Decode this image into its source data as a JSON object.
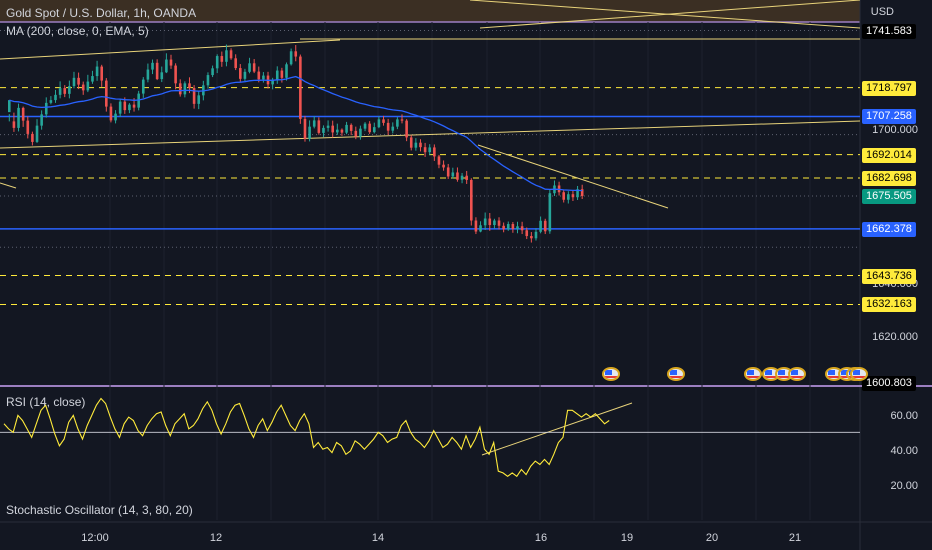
{
  "header": {
    "title": "Gold Spot / U.S. Dollar, 1h, OANDA",
    "ma_legend": "MA (200, close, 0, EMA, 5)",
    "currency": "USD"
  },
  "price_axis": {
    "ticks": [
      "1700.000",
      "1640.000",
      "1620.000"
    ],
    "tags": [
      {
        "value": "1741.583",
        "color": "#ffffff",
        "bg": "#000000"
      },
      {
        "value": "1718.797",
        "color": "#000000",
        "bg": "#ffeb3b"
      },
      {
        "value": "1707.258",
        "color": "#ffffff",
        "bg": "#2962ff"
      },
      {
        "value": "1692.014",
        "color": "#000000",
        "bg": "#ffeb3b"
      },
      {
        "value": "1682.698",
        "color": "#000000",
        "bg": "#ffeb3b"
      },
      {
        "value": "1675.505",
        "color": "#ffffff",
        "bg": "#089981"
      },
      {
        "value": "1662.378",
        "color": "#ffffff",
        "bg": "#2962ff"
      },
      {
        "value": "1643.736",
        "color": "#000000",
        "bg": "#ffeb3b"
      },
      {
        "value": "1632.163",
        "color": "#000000",
        "bg": "#ffeb3b"
      },
      {
        "value": "1600.803",
        "color": "#ffffff",
        "bg": "#000000"
      }
    ]
  },
  "rsi": {
    "legend": "RSI (14, close)",
    "ticks": [
      "60.00",
      "40.00",
      "20.00"
    ]
  },
  "stoch": {
    "legend": "Stochastic Oscillator (14, 3, 80, 20)"
  },
  "time_axis": {
    "labels": [
      "12:00",
      "12",
      "14",
      "16",
      "19",
      "20",
      "21"
    ]
  },
  "events": {
    "icon": "us-flag-icon",
    "count": 10
  },
  "colors": {
    "background": "#131722",
    "up": "#26a69a",
    "down": "#ef5350",
    "ma": "#2962ff",
    "support_blue": "#2962ff",
    "yellow": "#ffeb3b",
    "trendline": "#e8d37a",
    "rsi_line": "#ffeb3b",
    "pane_separator": "#9c7fc1"
  },
  "chart_data": {
    "type": "candlestick",
    "title": "Gold Spot / U.S. Dollar, 1h, OANDA",
    "y_unit": "USD",
    "price_ylim": [
      1600,
      1745
    ],
    "horizontal_levels_dashed": [
      1718.797,
      1692.014,
      1682.698,
      1643.736,
      1632.163
    ],
    "horizontal_levels_solid": [
      1707.258,
      1662.378
    ],
    "last_price": 1675.505,
    "dotted_levels": [
      1741.583,
      1700.0,
      1675.505,
      1655.0
    ],
    "rsi_ylim": [
      10,
      75
    ],
    "rsi_level": 50,
    "rsi_values": [
      55,
      52,
      50,
      60,
      57,
      52,
      47,
      55,
      63,
      66,
      58,
      49,
      42,
      46,
      56,
      60,
      52,
      46,
      54,
      60,
      66,
      70,
      67,
      59,
      52,
      47,
      55,
      59,
      57,
      51,
      48,
      54,
      58,
      61,
      62,
      54,
      48,
      55,
      58,
      61,
      52,
      54,
      58,
      64,
      68,
      63,
      55,
      49,
      55,
      62,
      66,
      67,
      60,
      52,
      47,
      54,
      58,
      51,
      56,
      62,
      66,
      60,
      54,
      51,
      57,
      61,
      55,
      41,
      44,
      40,
      41,
      38,
      44,
      42,
      37,
      39,
      45,
      43,
      40,
      43,
      46,
      50,
      48,
      44,
      46,
      47,
      54,
      57,
      50,
      46,
      44,
      41,
      45,
      51,
      46,
      41,
      43,
      47,
      44,
      40,
      48,
      41,
      46,
      53,
      40,
      37,
      44,
      27,
      26,
      24,
      26,
      24,
      28,
      25,
      30,
      33,
      31,
      34,
      31,
      37,
      44,
      47,
      63,
      63,
      61,
      59,
      61,
      59,
      61,
      58,
      55,
      57
    ],
    "candles": [
      [
        1709.0,
        1713.8,
        1708.2,
        1705.3
      ],
      [
        1705.3,
        1702.7,
        1708.8,
        1701.1
      ],
      [
        1702.7,
        1710.7,
        1712.4,
        1701.3
      ],
      [
        1710.7,
        1705.6,
        1711.2,
        1703.1
      ],
      [
        1705.6,
        1700.3,
        1707.3,
        1698.5
      ],
      [
        1700.3,
        1697.1,
        1701.2,
        1695.7
      ],
      [
        1697.1,
        1703.6,
        1706.2,
        1696.7
      ],
      [
        1703.6,
        1708.1,
        1709.7,
        1702.0
      ],
      [
        1708.1,
        1712.7,
        1714.9,
        1706.8
      ],
      [
        1712.7,
        1713.8,
        1715.4,
        1712.1
      ],
      [
        1713.8,
        1715.9,
        1717.9,
        1712.7
      ],
      [
        1715.9,
        1718.6,
        1721.3,
        1714.5
      ],
      [
        1718.6,
        1716.3,
        1719.8,
        1715.0
      ],
      [
        1716.3,
        1719.4,
        1721.6,
        1714.5
      ],
      [
        1719.4,
        1722.7,
        1725.1,
        1718.5
      ],
      [
        1722.7,
        1720.0,
        1724.8,
        1718.2
      ],
      [
        1720.0,
        1717.7,
        1721.2,
        1715.9
      ],
      [
        1717.7,
        1721.2,
        1723.9,
        1717.0
      ],
      [
        1721.2,
        1723.4,
        1725.5,
        1720.3
      ],
      [
        1723.4,
        1727.2,
        1729.5,
        1721.5
      ],
      [
        1727.2,
        1721.6,
        1727.9,
        1719.1
      ],
      [
        1721.6,
        1711.2,
        1722.6,
        1709.2
      ],
      [
        1711.2,
        1705.7,
        1712.5,
        1704.9
      ],
      [
        1705.7,
        1708.4,
        1709.8,
        1704.5
      ],
      [
        1708.4,
        1713.2,
        1714.2,
        1707.1
      ],
      [
        1713.2,
        1709.8,
        1714.9,
        1708.3
      ],
      [
        1709.8,
        1712.0,
        1712.6,
        1708.6
      ],
      [
        1712.0,
        1710.8,
        1714.6,
        1709.2
      ],
      [
        1710.8,
        1716.4,
        1717.5,
        1709.7
      ],
      [
        1716.4,
        1722.0,
        1723.0,
        1714.7
      ],
      [
        1722.0,
        1726.0,
        1728.4,
        1720.9
      ],
      [
        1726.0,
        1728.7,
        1730.0,
        1724.2
      ],
      [
        1728.7,
        1722.2,
        1730.1,
        1721.8
      ],
      [
        1722.2,
        1724.9,
        1727.2,
        1721.0
      ],
      [
        1724.9,
        1730.0,
        1732.5,
        1724.6
      ],
      [
        1730.0,
        1727.6,
        1731.9,
        1726.3
      ],
      [
        1727.6,
        1720.5,
        1728.5,
        1718.1
      ],
      [
        1720.5,
        1716.1,
        1722.1,
        1715.2
      ],
      [
        1716.1,
        1720.5,
        1721.3,
        1714.9
      ],
      [
        1720.5,
        1718.6,
        1722.9,
        1716.6
      ],
      [
        1718.6,
        1712.3,
        1719.8,
        1710.4
      ],
      [
        1712.3,
        1715.7,
        1717.4,
        1710.2
      ],
      [
        1715.7,
        1719.7,
        1721.5,
        1713.7
      ],
      [
        1719.7,
        1723.8,
        1724.9,
        1718.4
      ],
      [
        1723.8,
        1726.5,
        1727.6,
        1723.0
      ],
      [
        1726.5,
        1731.4,
        1732.1,
        1724.6
      ],
      [
        1731.4,
        1729.1,
        1733.2,
        1727.1
      ],
      [
        1729.1,
        1733.7,
        1736.0,
        1727.3
      ],
      [
        1733.7,
        1730.5,
        1734.5,
        1729.9
      ],
      [
        1730.5,
        1726.6,
        1732.1,
        1725.8
      ],
      [
        1726.6,
        1722.3,
        1728.2,
        1720.8
      ],
      [
        1722.3,
        1725.1,
        1726.3,
        1721.4
      ],
      [
        1725.1,
        1728.5,
        1730.7,
        1724.5
      ],
      [
        1728.5,
        1725.2,
        1730.2,
        1724.6
      ],
      [
        1725.2,
        1722.1,
        1727.2,
        1720.9
      ],
      [
        1722.1,
        1723.6,
        1725.0,
        1720.8
      ],
      [
        1723.6,
        1720.1,
        1725.1,
        1718.4
      ],
      [
        1720.1,
        1721.9,
        1722.7,
        1718.1
      ],
      [
        1721.9,
        1725.6,
        1727.3,
        1720.3
      ],
      [
        1725.6,
        1722.7,
        1726.7,
        1720.8
      ],
      [
        1722.7,
        1728.1,
        1728.8,
        1721.6
      ],
      [
        1728.1,
        1733.3,
        1734.4,
        1727.6
      ],
      [
        1733.3,
        1731.2,
        1735.8,
        1729.3
      ],
      [
        1731.2,
        1706.3,
        1732.0,
        1704.3
      ],
      [
        1706.3,
        1698.3,
        1707.5,
        1697.2
      ],
      [
        1698.3,
        1703.2,
        1705.7,
        1697.3
      ],
      [
        1703.2,
        1705.7,
        1707.4,
        1702.5
      ],
      [
        1705.7,
        1700.7,
        1706.9,
        1700.0
      ],
      [
        1700.7,
        1702.7,
        1703.7,
        1699.0
      ],
      [
        1702.7,
        1703.6,
        1705.7,
        1701.2
      ],
      [
        1703.6,
        1700.9,
        1705.6,
        1698.8
      ],
      [
        1700.9,
        1702.0,
        1704.4,
        1699.9
      ],
      [
        1702.0,
        1700.8,
        1702.5,
        1699.5
      ],
      [
        1700.8,
        1703.9,
        1705.1,
        1700.2
      ],
      [
        1703.9,
        1701.5,
        1704.5,
        1699.8
      ],
      [
        1701.5,
        1699.2,
        1703.2,
        1698.2
      ],
      [
        1699.2,
        1702.4,
        1703.6,
        1698.0
      ],
      [
        1702.4,
        1704.4,
        1705.0,
        1701.4
      ],
      [
        1704.4,
        1701.0,
        1705.4,
        1700.3
      ],
      [
        1701.0,
        1703.0,
        1704.8,
        1700.5
      ],
      [
        1703.0,
        1706.1,
        1707.3,
        1702.6
      ],
      [
        1706.1,
        1704.7,
        1707.5,
        1703.6
      ],
      [
        1704.7,
        1701.6,
        1706.3,
        1699.9
      ],
      [
        1701.6,
        1703.2,
        1704.9,
        1700.5
      ],
      [
        1703.2,
        1706.1,
        1707.0,
        1702.2
      ],
      [
        1706.1,
        1705.6,
        1708.1,
        1704.5
      ],
      [
        1705.6,
        1698.9,
        1706.2,
        1697.4
      ],
      [
        1698.9,
        1694.8,
        1699.8,
        1693.7
      ],
      [
        1694.8,
        1696.8,
        1698.6,
        1693.6
      ],
      [
        1696.8,
        1695.0,
        1698.2,
        1693.3
      ],
      [
        1695.0,
        1693.0,
        1696.7,
        1691.1
      ],
      [
        1693.0,
        1694.9,
        1696.2,
        1691.8
      ],
      [
        1694.9,
        1691.3,
        1696.1,
        1689.5
      ],
      [
        1691.3,
        1688.0,
        1691.9,
        1686.6
      ],
      [
        1688.0,
        1686.9,
        1689.7,
        1685.6
      ],
      [
        1686.9,
        1683.3,
        1688.3,
        1682.3
      ],
      [
        1683.3,
        1684.9,
        1686.8,
        1682.4
      ],
      [
        1684.9,
        1682.0,
        1686.9,
        1681.2
      ],
      [
        1682.0,
        1683.6,
        1684.7,
        1680.6
      ],
      [
        1683.6,
        1681.9,
        1685.5,
        1680.3
      ],
      [
        1681.9,
        1665.7,
        1682.6,
        1663.7
      ],
      [
        1665.7,
        1661.3,
        1667.0,
        1660.3
      ],
      [
        1661.3,
        1663.8,
        1665.4,
        1661.0
      ],
      [
        1663.8,
        1666.5,
        1668.9,
        1661.9
      ],
      [
        1666.5,
        1663.9,
        1668.7,
        1661.6
      ],
      [
        1663.9,
        1665.7,
        1666.4,
        1662.5
      ],
      [
        1665.7,
        1663.6,
        1667.0,
        1662.1
      ],
      [
        1663.6,
        1662.2,
        1664.9,
        1661.0
      ],
      [
        1662.2,
        1664.3,
        1665.3,
        1661.6
      ],
      [
        1664.3,
        1662.3,
        1665.1,
        1660.8
      ],
      [
        1662.3,
        1663.4,
        1665.2,
        1660.6
      ],
      [
        1663.4,
        1661.8,
        1665.2,
        1660.3
      ],
      [
        1661.8,
        1659.5,
        1662.9,
        1658.3
      ],
      [
        1659.5,
        1658.6,
        1661.1,
        1656.9
      ],
      [
        1658.6,
        1661.2,
        1662.6,
        1657.7
      ],
      [
        1661.2,
        1665.6,
        1667.3,
        1660.6
      ],
      [
        1665.6,
        1661.4,
        1666.4,
        1660.3
      ],
      [
        1661.4,
        1676.6,
        1678.0,
        1660.4
      ],
      [
        1676.6,
        1679.7,
        1681.7,
        1675.5
      ],
      [
        1679.7,
        1677.0,
        1681.2,
        1675.7
      ],
      [
        1677.0,
        1674.0,
        1677.8,
        1672.9
      ],
      [
        1674.0,
        1676.2,
        1677.4,
        1672.5
      ],
      [
        1676.2,
        1675.0,
        1677.6,
        1673.5
      ],
      [
        1675.0,
        1678.2,
        1679.5,
        1673.9
      ],
      [
        1678.2,
        1675.5,
        1680.0,
        1674.3
      ]
    ]
  }
}
